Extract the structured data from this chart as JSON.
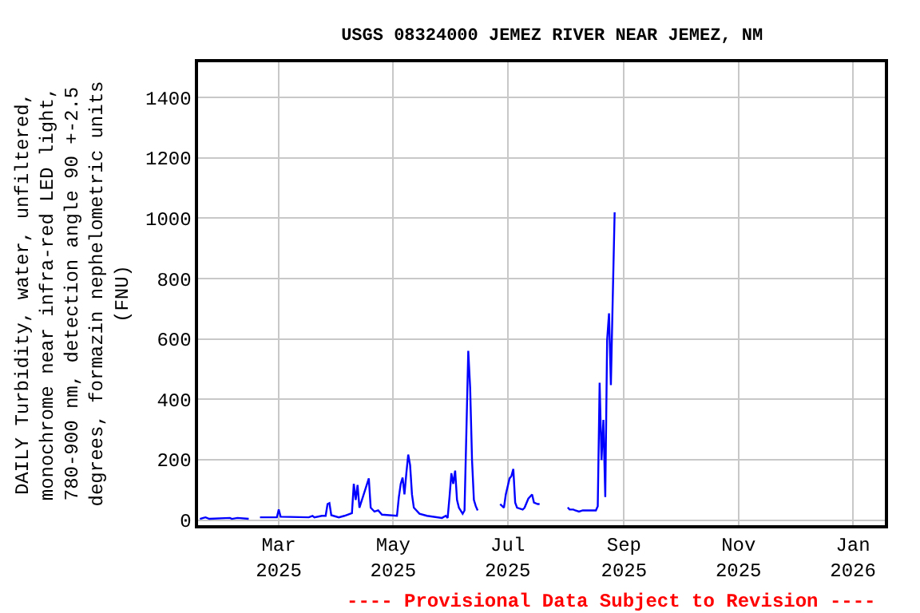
{
  "chart_data": {
    "type": "line",
    "title": "USGS 08324000 JEMEZ RIVER NEAR JEMEZ, NM",
    "ylabel": "DAILY Turbidity, water, unfiltered,\nmonochrome near infra-red LED light,\n780-900 nm, detection angle 90 +-2.5\ndegrees, formazin nephelometric units\n(FNU)",
    "annotations": [
      "---- Provisional Data Subject to Revision ----"
    ],
    "x": [
      "2025-01-18",
      "2025-01-21",
      "2025-01-23",
      "2025-02-03",
      "2025-02-04",
      "2025-02-07",
      "2025-02-13",
      "2025-02-16",
      "2025-02-19",
      "2025-02-28",
      "2025-03-01",
      "2025-03-02",
      "2025-03-17",
      "2025-03-19",
      "2025-03-20",
      "2025-03-24",
      "2025-03-26",
      "2025-03-27",
      "2025-03-28",
      "2025-03-29",
      "2025-04-02",
      "2025-04-05",
      "2025-04-09",
      "2025-04-10",
      "2025-04-11",
      "2025-04-12",
      "2025-04-13",
      "2025-04-18",
      "2025-04-19",
      "2025-04-21",
      "2025-04-23",
      "2025-04-25",
      "2025-05-03",
      "2025-05-04",
      "2025-05-05",
      "2025-05-06",
      "2025-05-07",
      "2025-05-08",
      "2025-05-09",
      "2025-05-10",
      "2025-05-11",
      "2025-05-12",
      "2025-05-15",
      "2025-05-19",
      "2025-05-27",
      "2025-05-29",
      "2025-05-30",
      "2025-05-31",
      "2025-06-01",
      "2025-06-02",
      "2025-06-03",
      "2025-06-04",
      "2025-06-05",
      "2025-06-07",
      "2025-06-08",
      "2025-06-09",
      "2025-06-10",
      "2025-06-11",
      "2025-06-12",
      "2025-06-13",
      "2025-06-14",
      "2025-06-15",
      "2025-06-21",
      "2025-06-27",
      "2025-06-29",
      "2025-06-30",
      "2025-07-02",
      "2025-07-03",
      "2025-07-04",
      "2025-07-05",
      "2025-07-06",
      "2025-07-09",
      "2025-07-10",
      "2025-07-12",
      "2025-07-14",
      "2025-07-15",
      "2025-07-17",
      "2025-07-18",
      "2025-07-25",
      "2025-08-02",
      "2025-08-03",
      "2025-08-05",
      "2025-08-06",
      "2025-08-08",
      "2025-08-10",
      "2025-08-17",
      "2025-08-18",
      "2025-08-19",
      "2025-08-20",
      "2025-08-21",
      "2025-08-22",
      "2025-08-23",
      "2025-08-24",
      "2025-08-25",
      "2025-08-26",
      "2025-08-27"
    ],
    "series": [
      {
        "color": "#0000ff",
        "values": [
          4,
          9,
          4,
          7,
          4,
          7,
          4,
          null,
          9,
          9,
          35,
          11,
          9,
          14,
          9,
          14,
          14,
          53,
          56,
          16,
          9,
          14,
          23,
          120,
          67,
          116,
          41,
          138,
          41,
          28,
          32,
          18,
          14,
          76,
          120,
          141,
          85,
          155,
          217,
          182,
          85,
          41,
          21,
          14,
          7,
          14,
          7,
          76,
          155,
          120,
          164,
          67,
          41,
          21,
          32,
          296,
          561,
          438,
          199,
          67,
          46,
          32,
          null,
          53,
          41,
          85,
          138,
          146,
          169,
          58,
          41,
          35,
          41,
          71,
          85,
          58,
          53,
          53,
          null,
          42,
          35,
          35,
          32,
          28,
          32,
          32,
          46,
          455,
          199,
          332,
          76,
          597,
          685,
          447,
          738,
          1020
        ]
      }
    ],
    "xlim": [
      "2025-01-17",
      "2026-01-18"
    ],
    "xticks": [
      {
        "value": "2025-03-01",
        "label": "Mar\n2025"
      },
      {
        "value": "2025-05-01",
        "label": "May\n2025"
      },
      {
        "value": "2025-07-01",
        "label": "Jul\n2025"
      },
      {
        "value": "2025-09-01",
        "label": "Sep\n2025"
      },
      {
        "value": "2025-11-01",
        "label": "Nov\n2025"
      },
      {
        "value": "2026-01-01",
        "label": "Jan\n2026"
      }
    ],
    "ylim": [
      -17,
      1517
    ],
    "yticks": [
      0,
      200,
      400,
      600,
      800,
      1000,
      1200,
      1400
    ],
    "grid": true,
    "legend": false,
    "marker": "none",
    "line_style": "solid"
  }
}
